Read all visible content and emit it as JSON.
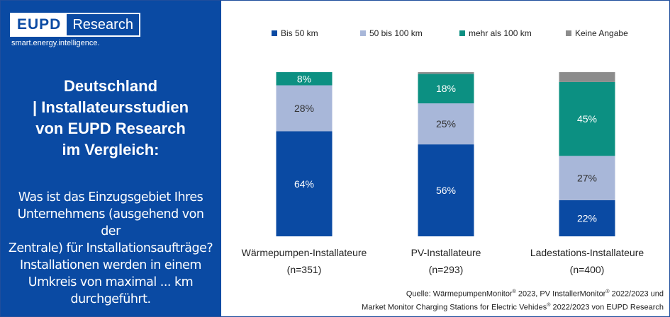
{
  "brand": {
    "logo_left": "EUPD",
    "logo_right": "Research",
    "tagline": "smart.energy.intelligence."
  },
  "panel": {
    "headline": "Deutschland\n| Installateursstudien\nvon EUPD Research\nim Vergleich:",
    "question": "Was ist das Einzugsgebiet Ihres\nUnternehmens (ausgehend von der\nZentrale) für Installationsaufträge?\nInstallationen werden in einem\nUmkreis von maximal ... km\ndurchgeführt."
  },
  "source": {
    "l1a": "Quelle: WärmepumpenMonitor",
    "l1b": " 2023, PV InstallerMonitor",
    "l1c": " 2022/2023 und",
    "l2a": "Market Monitor Charging Stations  for Electric Vehides",
    "l2b": " 2022/2023 von EUPD Research",
    "reg": "®"
  },
  "chart_data": {
    "type": "bar",
    "stacked": true,
    "percent": true,
    "categories": [
      "Wärmepumpen-Installateure",
      "PV-Installateure",
      "Ladestations-Installateure"
    ],
    "sample_sizes": [
      "(n=351)",
      "(n=293)",
      "(n=400)"
    ],
    "series": [
      {
        "name": "Bis 50 km",
        "color": "#0a4aa3",
        "values": [
          64,
          56,
          22
        ],
        "labels": [
          "64%",
          "56%",
          "22%"
        ]
      },
      {
        "name": "50 bis 100 km",
        "color": "#a8b7d9",
        "values": [
          28,
          25,
          27
        ],
        "labels": [
          "28%",
          "25%",
          "27%"
        ]
      },
      {
        "name": "mehr als 100 km",
        "color": "#0c9082",
        "values": [
          8,
          18,
          45
        ],
        "labels": [
          "8%",
          "18%",
          "45%"
        ]
      },
      {
        "name": "Keine Angabe",
        "color": "#8c8c8c",
        "values": [
          0,
          1,
          6
        ],
        "labels": [
          "",
          "",
          ""
        ]
      }
    ],
    "legend_position": "top",
    "grid": false,
    "ylim": [
      0,
      100
    ]
  }
}
